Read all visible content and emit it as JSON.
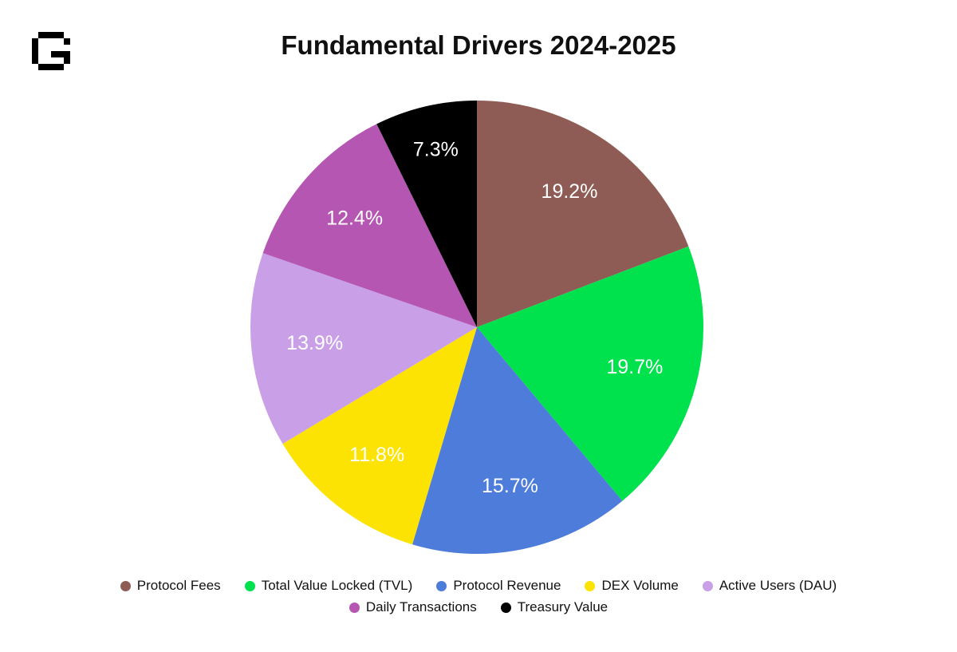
{
  "brand": {
    "logo_icon": "pixel-g-logo"
  },
  "chart_data": {
    "type": "pie",
    "title": "Fundamental Drivers 2024-2025",
    "start_angle_deg": 0,
    "direction": "clockwise",
    "legend_position": "bottom",
    "legend_rows": [
      [
        0,
        1,
        2,
        3,
        4
      ],
      [
        5,
        6
      ]
    ],
    "slices": [
      {
        "label": "Protocol Fees",
        "value": 19.2,
        "display": "19.2%",
        "color": "#8e5c55",
        "label_color": "#ffffff"
      },
      {
        "label": "Total Value Locked (TVL)",
        "value": 19.7,
        "display": "19.7%",
        "color": "#00e14e",
        "label_color": "#ffffff"
      },
      {
        "label": "Protocol Revenue",
        "value": 15.7,
        "display": "15.7%",
        "color": "#4d7cdb",
        "label_color": "#ffffff"
      },
      {
        "label": "DEX Volume",
        "value": 11.8,
        "display": "11.8%",
        "color": "#fce303",
        "label_color": "#ffffff"
      },
      {
        "label": "Active Users (DAU)",
        "value": 13.9,
        "display": "13.9%",
        "color": "#c9a0e8",
        "label_color": "#ffffff"
      },
      {
        "label": "Daily Transactions",
        "value": 12.4,
        "display": "12.4%",
        "color": "#b456b2",
        "label_color": "#ffffff"
      },
      {
        "label": "Treasury Value",
        "value": 7.3,
        "display": "7.3%",
        "color": "#000000",
        "label_color": "#ffffff"
      }
    ]
  }
}
